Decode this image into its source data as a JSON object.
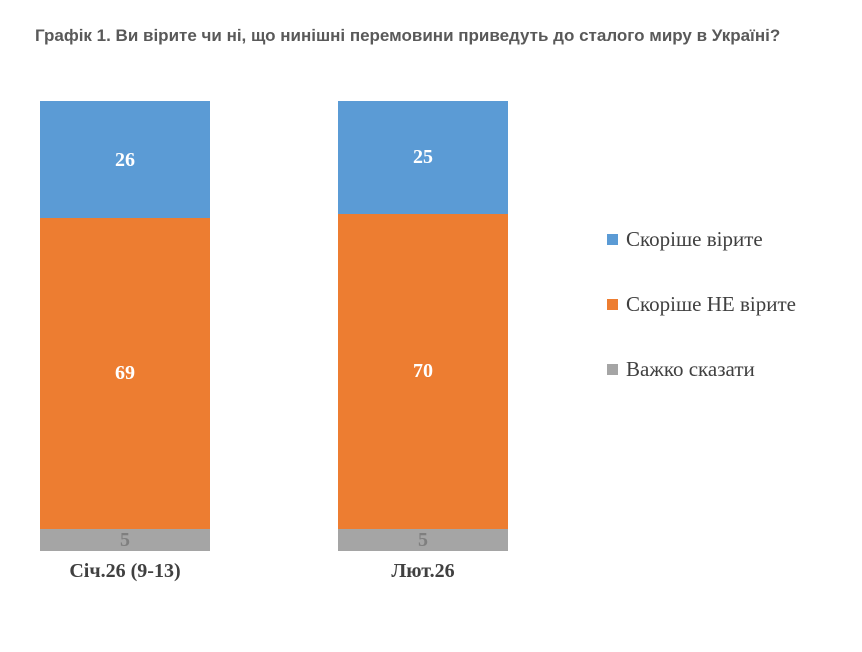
{
  "title": "Графік 1. Ви вірите чи ні, що нинішні перемовини приведуть до сталого миру в Україні?",
  "chart_data": {
    "type": "bar",
    "stacked": true,
    "orientation": "vertical",
    "categories": [
      "Січ.26 (9-13)",
      "Лют.26"
    ],
    "series": [
      {
        "name": "Скоріше вірите",
        "color": "#5B9BD5",
        "label_color": "#FFFFFF",
        "values": [
          26,
          25
        ]
      },
      {
        "name": "Скоріше НЕ вірите",
        "color": "#ED7D31",
        "label_color": "#FFFFFF",
        "values": [
          69,
          70
        ]
      },
      {
        "name": "Важко сказати",
        "color": "#A5A5A5",
        "label_color": "#7F7F7F",
        "values": [
          5,
          5
        ]
      }
    ],
    "ylim": [
      0,
      100
    ],
    "grid": false,
    "axes_visible": false,
    "data_labels": true,
    "legend_position": "right"
  },
  "colors": {
    "background": "#FFFFFF",
    "title_text": "#595959",
    "axis_text": "#404040",
    "legend_text": "#404040"
  }
}
